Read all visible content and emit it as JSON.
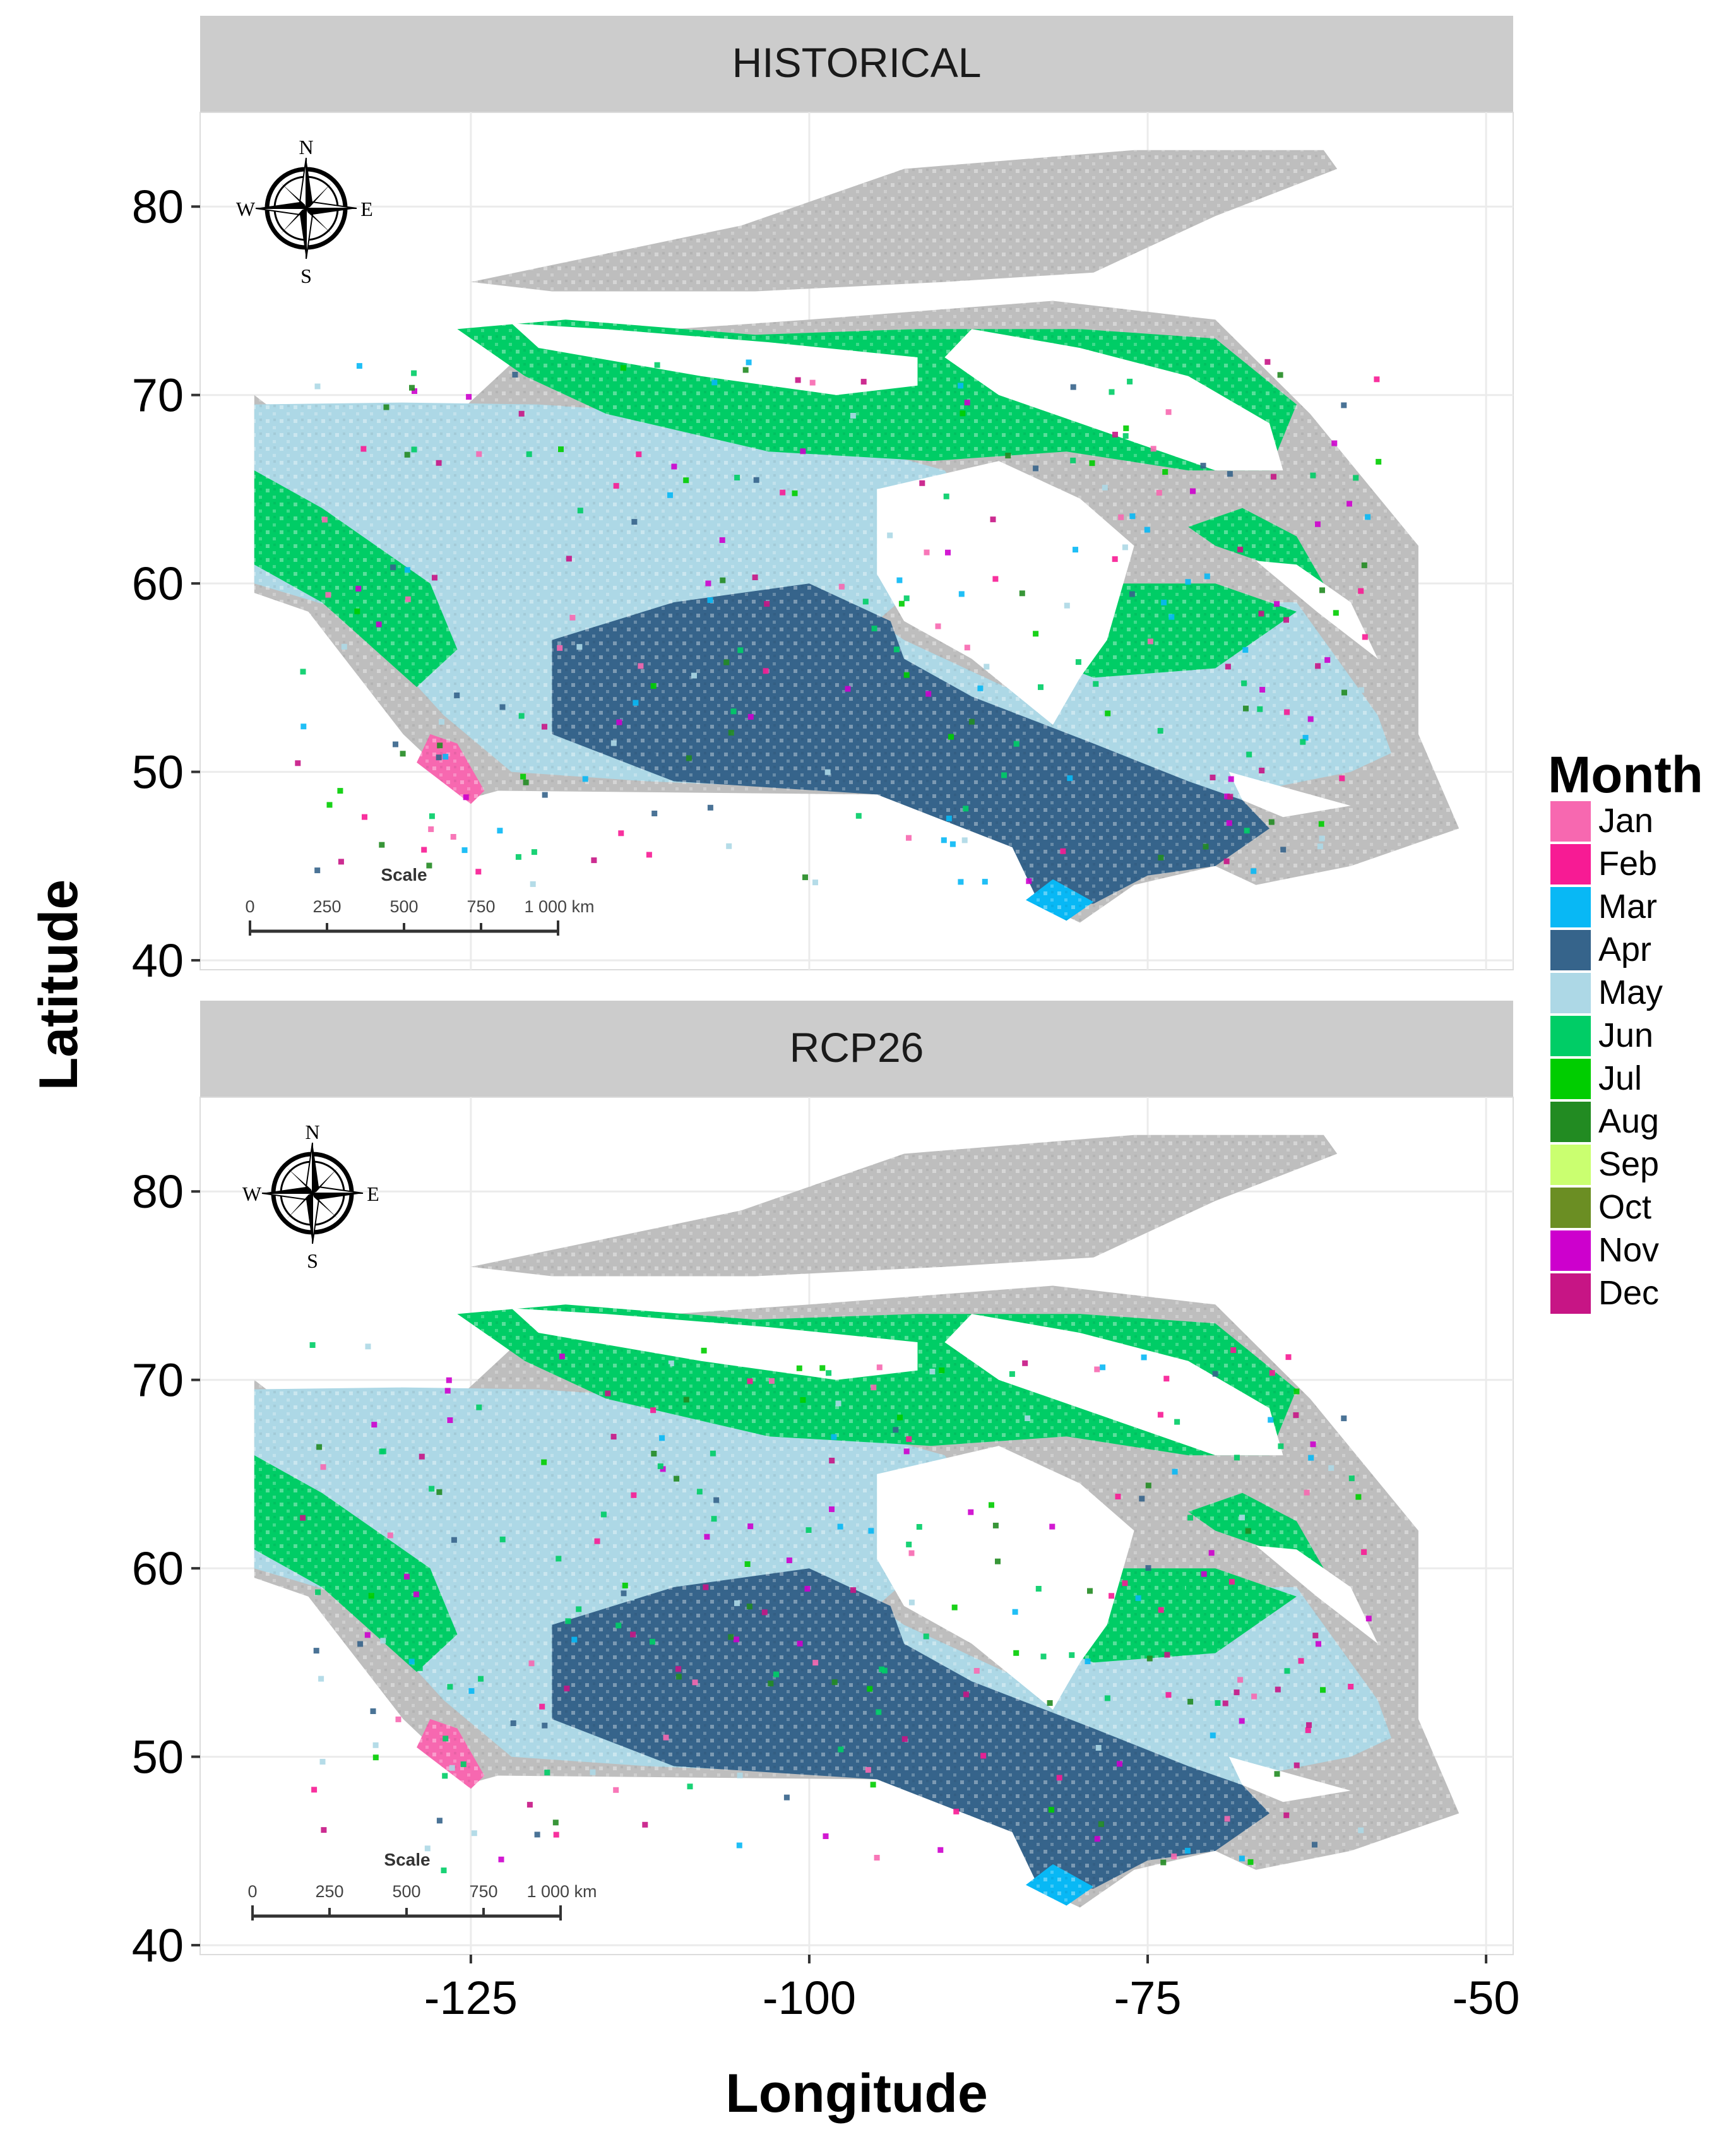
{
  "figure": {
    "x_axis_title": "Longitude",
    "y_axis_title": "Latitude",
    "x_ticks": [
      -125,
      -100,
      -75,
      -50
    ],
    "y_ticks": [
      40,
      50,
      60,
      70,
      80
    ],
    "x_range": [
      -145,
      -48
    ],
    "y_range": [
      39.5,
      85
    ]
  },
  "legend": {
    "title": "Month",
    "items": [
      {
        "label": "Jan",
        "color": "#F768B0"
      },
      {
        "label": "Feb",
        "color": "#F71B94"
      },
      {
        "label": "Mar",
        "color": "#08B8F5"
      },
      {
        "label": "Apr",
        "color": "#36648B"
      },
      {
        "label": "May",
        "color": "#ADD8E6"
      },
      {
        "label": "Jun",
        "color": "#00CD66"
      },
      {
        "label": "Jul",
        "color": "#00CD00"
      },
      {
        "label": "Aug",
        "color": "#228B22"
      },
      {
        "label": "Sep",
        "color": "#CAFF70"
      },
      {
        "label": "Oct",
        "color": "#6B8E23"
      },
      {
        "label": "Nov",
        "color": "#CD00CD"
      },
      {
        "label": "Dec",
        "color": "#C71585"
      }
    ],
    "no_data_color": "#BEBEBE"
  },
  "panels": [
    {
      "title": "HISTORICAL",
      "compass": {
        "n": "N",
        "e": "E",
        "s": "S",
        "w": "W"
      },
      "scale_bar": {
        "title": "Scale",
        "labels": [
          "0",
          "250",
          "500",
          "750",
          "1 000 km"
        ]
      }
    },
    {
      "title": "RCP26",
      "compass": {
        "n": "N",
        "e": "E",
        "s": "S",
        "w": "W"
      },
      "scale_bar": {
        "title": "Scale",
        "labels": [
          "0",
          "250",
          "500",
          "750",
          "1 000 km"
        ]
      }
    }
  ],
  "chart_data": {
    "type": "heatmap",
    "description_kind": "gridded map of Canada colored by month",
    "facets": [
      "HISTORICAL",
      "RCP26"
    ],
    "x_variable": "Longitude",
    "y_variable": "Latitude",
    "xlim": [
      -145,
      -48
    ],
    "ylim": [
      39.5,
      85
    ],
    "categories": [
      "Jan",
      "Feb",
      "Mar",
      "Apr",
      "May",
      "Jun",
      "Jul",
      "Aug",
      "Sep",
      "Oct",
      "Nov",
      "Dec"
    ]
  }
}
